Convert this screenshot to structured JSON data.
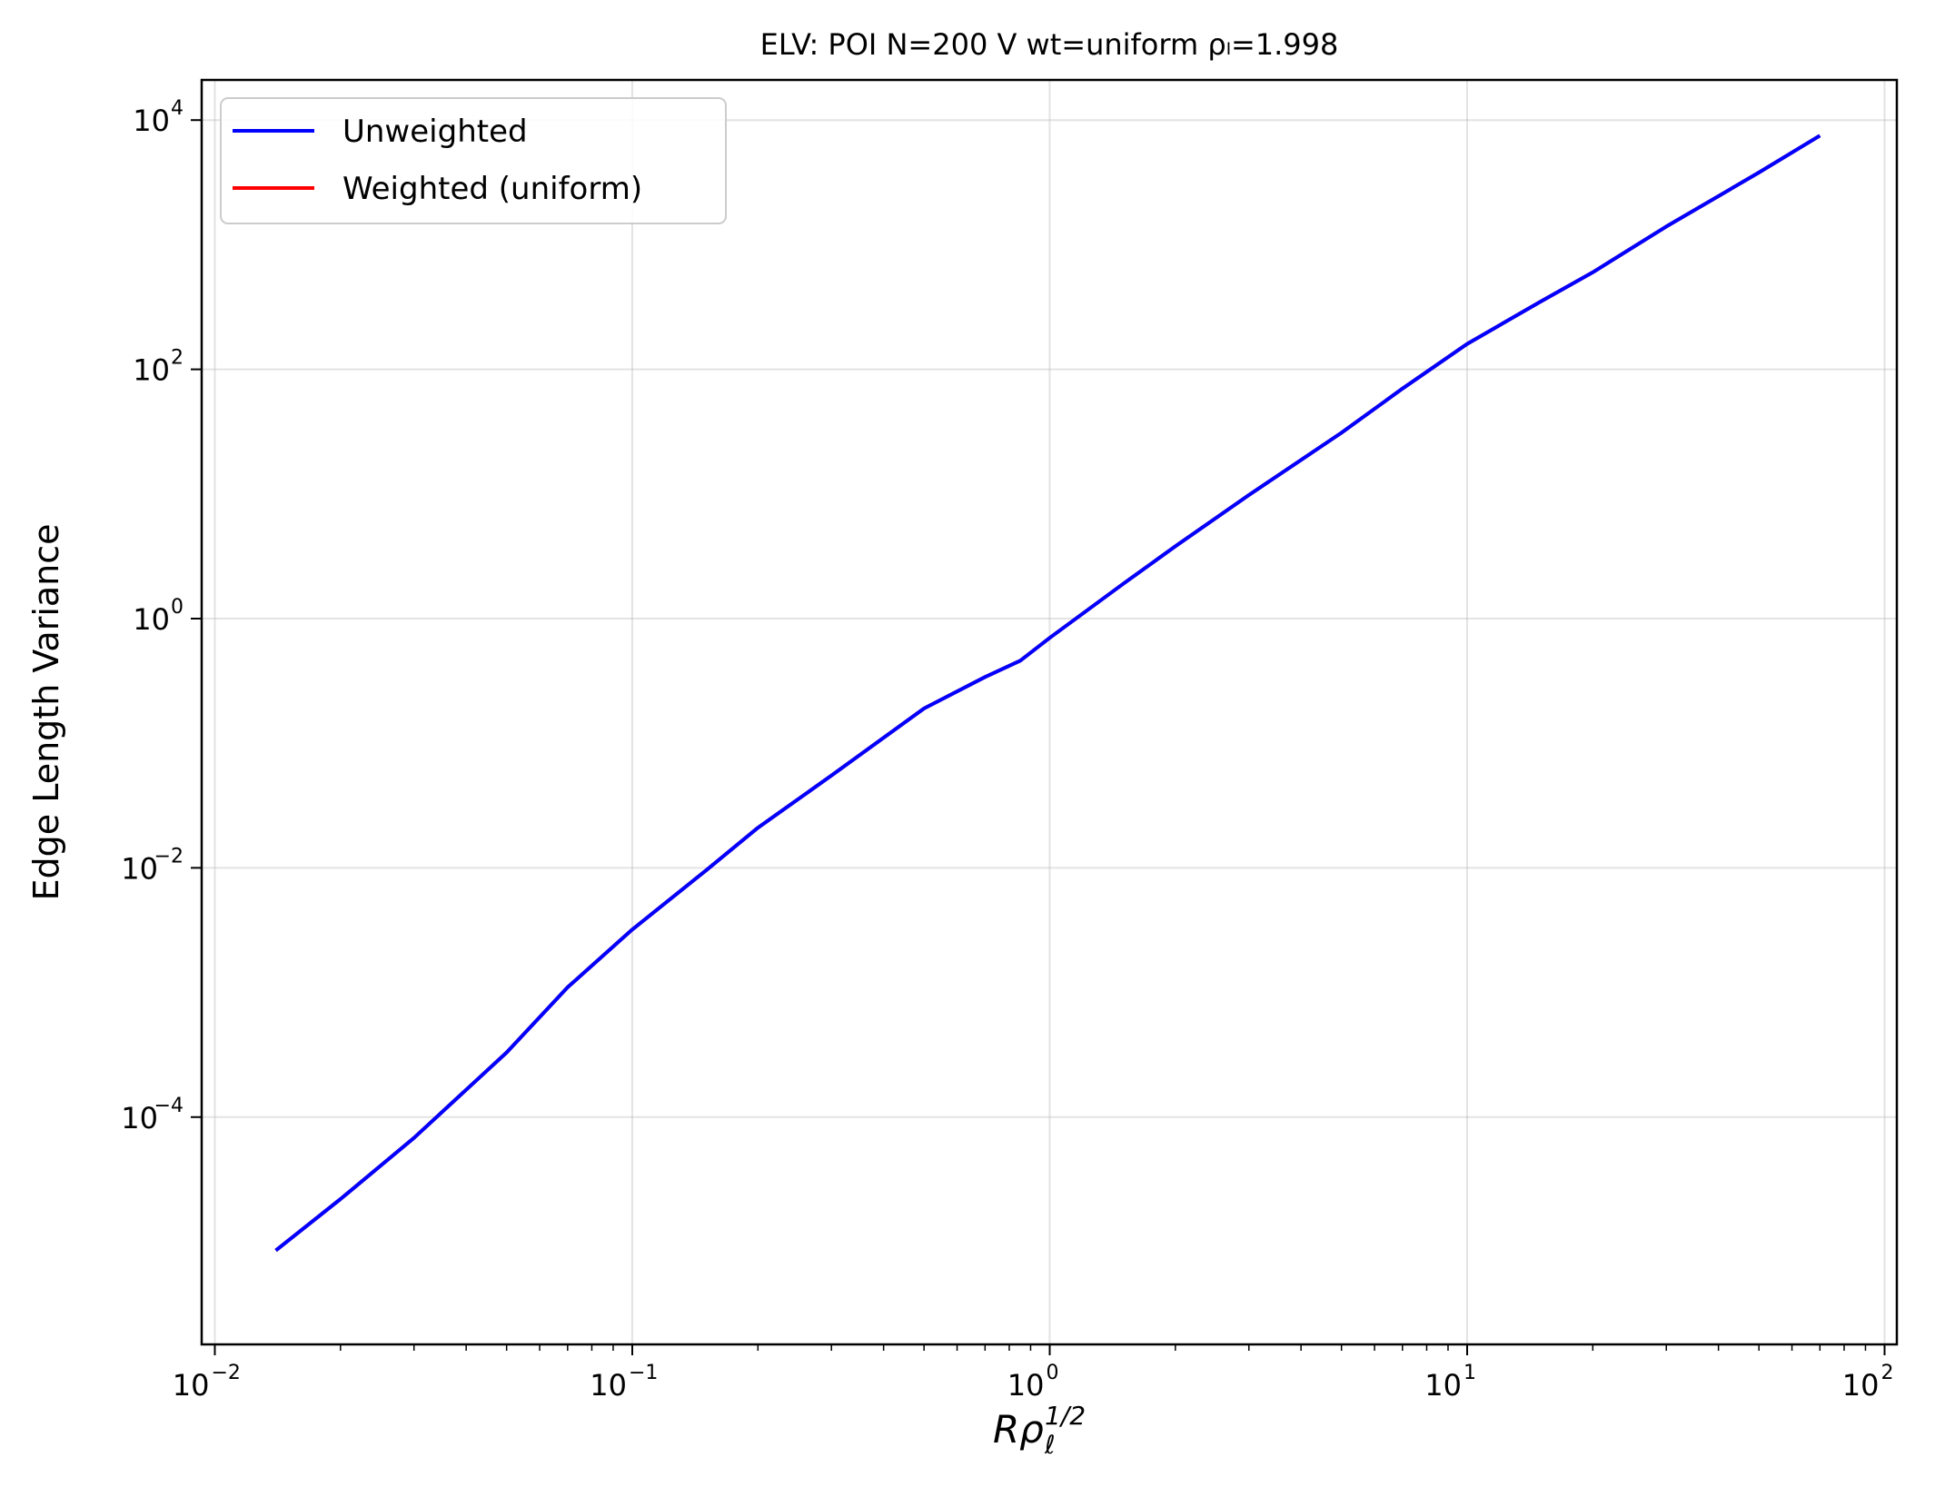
{
  "chart_data": {
    "type": "line",
    "title": "ELV: POI N=200 V wt=uniform ρₗ=1.998",
    "xlabel": "",
    "ylabel": "Edge Length Variance",
    "x_scale": "log",
    "y_scale": "log",
    "xlim": [
      0.0093,
      107
    ],
    "ylim": [
      1.5e-06,
      21000
    ],
    "x_ticks": [
      0.01,
      0.1,
      1,
      10,
      100
    ],
    "x_tick_labels": [
      {
        "base": "10",
        "exp": "−2"
      },
      {
        "base": "10",
        "exp": "−1"
      },
      {
        "base": "10",
        "exp": "0"
      },
      {
        "base": "10",
        "exp": "1"
      },
      {
        "base": "10",
        "exp": "2"
      }
    ],
    "y_ticks": [
      0.0001,
      0.01,
      1,
      100,
      10000
    ],
    "y_tick_labels": [
      {
        "base": "10",
        "exp": "−4"
      },
      {
        "base": "10",
        "exp": "−2"
      },
      {
        "base": "10",
        "exp": "0"
      },
      {
        "base": "10",
        "exp": "2"
      },
      {
        "base": "10",
        "exp": "4"
      }
    ],
    "grid": true,
    "legend_position": "top-left",
    "series": [
      {
        "name": "Unweighted",
        "color": "#0000ff",
        "x": [
          0.014,
          0.02,
          0.03,
          0.05,
          0.07,
          0.1,
          0.15,
          0.2,
          0.3,
          0.5,
          0.7,
          0.85,
          1.0,
          1.5,
          2.0,
          3.0,
          5.0,
          7.0,
          10.0,
          15.0,
          20.0,
          30.0,
          50.0,
          70.0
        ],
        "y": [
          8.5e-06,
          2.2e-05,
          6.8e-05,
          0.00033,
          0.0011,
          0.0032,
          0.0095,
          0.021,
          0.055,
          0.19,
          0.34,
          0.46,
          0.7,
          1.9,
          3.8,
          9.8,
          31,
          70,
          160,
          350,
          600,
          1400,
          3800,
          7500
        ]
      },
      {
        "name": "Weighted (uniform)",
        "color": "#ff0000",
        "x": [
          0.014,
          0.02,
          0.03,
          0.05,
          0.07,
          0.1,
          0.15,
          0.2,
          0.3,
          0.5,
          0.7,
          0.85,
          1.0,
          1.5,
          2.0,
          3.0,
          5.0,
          7.0,
          10.0,
          15.0,
          20.0,
          30.0,
          50.0,
          70.0
        ],
        "y": [
          8.5e-06,
          2.2e-05,
          6.8e-05,
          0.00033,
          0.0011,
          0.0032,
          0.0095,
          0.021,
          0.055,
          0.19,
          0.34,
          0.46,
          0.7,
          1.9,
          3.8,
          9.8,
          31,
          70,
          160,
          350,
          600,
          1400,
          3800,
          7500
        ]
      }
    ]
  }
}
